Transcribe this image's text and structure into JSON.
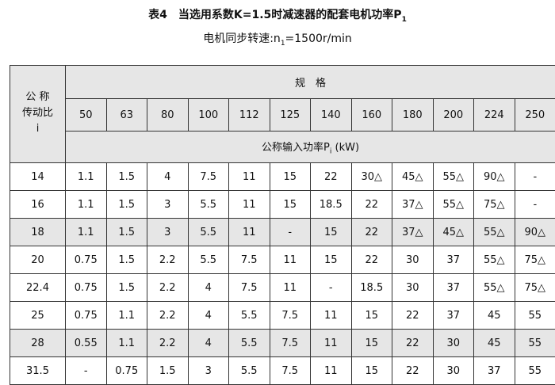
{
  "header": {
    "title": [
      "表4　当选用系数K=1.5时减速器的配套电机功率P",
      "1"
    ],
    "subtitle": [
      "电机同步转速:n",
      "1",
      "=1500r/min"
    ]
  },
  "table": {
    "ratio_label": [
      "公 称",
      "传动比",
      "i"
    ],
    "spec_label": "规　格",
    "sizes": [
      "50",
      "63",
      "80",
      "100",
      "112",
      "125",
      "140",
      "160",
      "180",
      "200",
      "224",
      "250"
    ],
    "power_label": [
      "公称输入功率P",
      "i",
      " (kW)"
    ],
    "rows": [
      {
        "label": "14",
        "shaded": false,
        "values": [
          "1.1",
          "1.5",
          "4",
          "7.5",
          "11",
          "15",
          "22",
          "30△",
          "45△",
          "55△",
          "90△",
          "-"
        ]
      },
      {
        "label": "16",
        "shaded": false,
        "values": [
          "1.1",
          "1.5",
          "3",
          "5.5",
          "11",
          "15",
          "18.5",
          "22",
          "37△",
          "55△",
          "75△",
          "-"
        ]
      },
      {
        "label": "18",
        "shaded": true,
        "values": [
          "1.1",
          "1.5",
          "3",
          "5.5",
          "11",
          "-",
          "15",
          "22",
          "37△",
          "45△",
          "55△",
          "90△"
        ]
      },
      {
        "label": "20",
        "shaded": false,
        "values": [
          "0.75",
          "1.5",
          "2.2",
          "5.5",
          "7.5",
          "11",
          "15",
          "22",
          "30",
          "37",
          "55△",
          "75△"
        ]
      },
      {
        "label": "22.4",
        "shaded": false,
        "values": [
          "0.75",
          "1.5",
          "2.2",
          "4",
          "7.5",
          "11",
          "-",
          "18.5",
          "30",
          "37",
          "55△",
          "75△"
        ]
      },
      {
        "label": "25",
        "shaded": false,
        "values": [
          "0.75",
          "1.1",
          "2.2",
          "4",
          "5.5",
          "7.5",
          "11",
          "15",
          "22",
          "37",
          "45",
          "55"
        ]
      },
      {
        "label": "28",
        "shaded": true,
        "values": [
          "0.55",
          "1.1",
          "2.2",
          "4",
          "5.5",
          "7.5",
          "11",
          "15",
          "22",
          "30",
          "45",
          "55"
        ]
      },
      {
        "label": "31.5",
        "shaded": false,
        "values": [
          "-",
          "0.75",
          "1.5",
          "3",
          "5.5",
          "7.5",
          "11",
          "15",
          "22",
          "30",
          "37",
          "55"
        ]
      }
    ]
  }
}
